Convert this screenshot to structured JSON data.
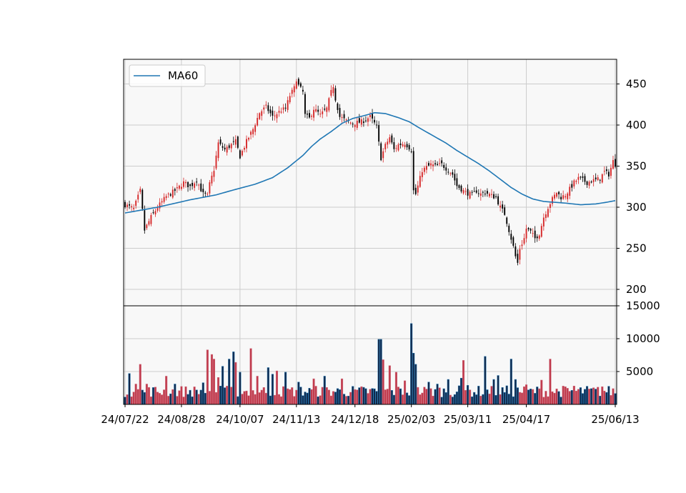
{
  "chart_data": [
    {
      "type": "candlestick",
      "panel": "price",
      "ylim": [
        180,
        480
      ],
      "yticks": [
        200,
        250,
        300,
        350,
        400,
        450
      ],
      "grid": true,
      "legend": {
        "placement": "top-left",
        "entries": [
          "MA60"
        ]
      },
      "up_color": "#d62728",
      "down_color": "#000000",
      "ma_color": "#1f77b4",
      "n_bars": 227,
      "close_keypoints": [
        [
          0,
          303
        ],
        [
          4,
          298
        ],
        [
          7,
          320
        ],
        [
          9,
          272
        ],
        [
          12,
          288
        ],
        [
          15,
          300
        ],
        [
          19,
          313
        ],
        [
          24,
          322
        ],
        [
          27,
          330
        ],
        [
          30,
          325
        ],
        [
          33,
          333
        ],
        [
          36,
          316
        ],
        [
          38,
          314
        ],
        [
          39,
          328
        ],
        [
          41,
          346
        ],
        [
          43,
          378
        ],
        [
          46,
          370
        ],
        [
          49,
          376
        ],
        [
          51,
          380
        ],
        [
          53,
          362
        ],
        [
          56,
          380
        ],
        [
          59,
          395
        ],
        [
          62,
          415
        ],
        [
          65,
          422
        ],
        [
          68,
          410
        ],
        [
          72,
          418
        ],
        [
          74,
          420
        ],
        [
          76,
          436
        ],
        [
          78,
          445
        ],
        [
          79,
          456
        ],
        [
          80,
          448
        ],
        [
          82,
          440
        ],
        [
          83,
          412
        ],
        [
          85,
          408
        ],
        [
          87,
          420
        ],
        [
          89,
          415
        ],
        [
          90,
          412
        ],
        [
          93,
          420
        ],
        [
          95,
          440
        ],
        [
          96,
          448
        ],
        [
          97,
          432
        ],
        [
          99,
          410
        ],
        [
          102,
          405
        ],
        [
          105,
          402
        ],
        [
          109,
          404
        ],
        [
          113,
          410
        ],
        [
          116,
          398
        ],
        [
          117,
          378
        ],
        [
          118,
          360
        ],
        [
          120,
          375
        ],
        [
          122,
          385
        ],
        [
          124,
          370
        ],
        [
          126,
          376
        ],
        [
          129,
          378
        ],
        [
          132,
          370
        ],
        [
          133,
          320
        ],
        [
          134,
          316
        ],
        [
          137,
          345
        ],
        [
          141,
          352
        ],
        [
          143,
          350
        ],
        [
          146,
          352
        ],
        [
          149,
          345
        ],
        [
          151,
          340
        ],
        [
          153,
          326
        ],
        [
          155,
          322
        ],
        [
          157,
          318
        ],
        [
          160,
          315
        ],
        [
          162,
          320
        ],
        [
          164,
          316
        ],
        [
          166,
          318
        ],
        [
          169,
          314
        ],
        [
          171,
          312
        ],
        [
          173,
          300
        ],
        [
          175,
          292
        ],
        [
          176,
          282
        ],
        [
          178,
          262
        ],
        [
          179,
          252
        ],
        [
          180,
          240
        ],
        [
          181,
          232
        ],
        [
          182,
          250
        ],
        [
          184,
          262
        ],
        [
          185,
          274
        ],
        [
          187,
          270
        ],
        [
          189,
          262
        ],
        [
          191,
          268
        ],
        [
          193,
          288
        ],
        [
          195,
          300
        ],
        [
          197,
          310
        ],
        [
          199,
          318
        ],
        [
          201,
          312
        ],
        [
          203,
          315
        ],
        [
          205,
          322
        ],
        [
          207,
          330
        ],
        [
          209,
          335
        ],
        [
          211,
          333
        ],
        [
          213,
          330
        ],
        [
          215,
          332
        ],
        [
          217,
          333
        ],
        [
          219,
          335
        ],
        [
          221,
          343
        ],
        [
          223,
          340
        ],
        [
          224,
          348
        ],
        [
          225,
          356
        ],
        [
          226,
          352
        ]
      ],
      "ma60_keypoints": [
        [
          0,
          293
        ],
        [
          15,
          300
        ],
        [
          30,
          309
        ],
        [
          42,
          315
        ],
        [
          50,
          321
        ],
        [
          60,
          328
        ],
        [
          68,
          336
        ],
        [
          75,
          348
        ],
        [
          82,
          363
        ],
        [
          86,
          374
        ],
        [
          90,
          383
        ],
        [
          95,
          392
        ],
        [
          100,
          402
        ],
        [
          105,
          408
        ],
        [
          111,
          412
        ],
        [
          115,
          415
        ],
        [
          120,
          414
        ],
        [
          126,
          409
        ],
        [
          131,
          404
        ],
        [
          136,
          396
        ],
        [
          142,
          387
        ],
        [
          148,
          378
        ],
        [
          153,
          369
        ],
        [
          158,
          361
        ],
        [
          163,
          353
        ],
        [
          168,
          344
        ],
        [
          173,
          334
        ],
        [
          178,
          324
        ],
        [
          183,
          316
        ],
        [
          188,
          310
        ],
        [
          193,
          307
        ],
        [
          203,
          305
        ],
        [
          210,
          303
        ],
        [
          217,
          304
        ],
        [
          222,
          306
        ],
        [
          226,
          308
        ]
      ]
    },
    {
      "type": "bar",
      "panel": "volume",
      "ylim": [
        0,
        15000
      ],
      "yticks": [
        5000,
        10000,
        15000
      ],
      "grid": true,
      "base_level": 2200,
      "spikes": [
        [
          2,
          4700
        ],
        [
          5,
          3100
        ],
        [
          7,
          6100
        ],
        [
          10,
          3100
        ],
        [
          19,
          4300
        ],
        [
          23,
          3100
        ],
        [
          36,
          3300
        ],
        [
          38,
          8300
        ],
        [
          40,
          7600
        ],
        [
          41,
          6900
        ],
        [
          43,
          4100
        ],
        [
          45,
          5800
        ],
        [
          48,
          6900
        ],
        [
          50,
          8000
        ],
        [
          51,
          6400
        ],
        [
          53,
          4900
        ],
        [
          58,
          8500
        ],
        [
          61,
          4300
        ],
        [
          66,
          5600
        ],
        [
          68,
          4600
        ],
        [
          70,
          5100
        ],
        [
          74,
          4900
        ],
        [
          80,
          3400
        ],
        [
          87,
          3900
        ],
        [
          92,
          4300
        ],
        [
          100,
          3900
        ],
        [
          107,
          2200
        ],
        [
          117,
          9900
        ],
        [
          118,
          9900
        ],
        [
          119,
          6800
        ],
        [
          122,
          5900
        ],
        [
          125,
          4900
        ],
        [
          129,
          3600
        ],
        [
          132,
          12300
        ],
        [
          133,
          7800
        ],
        [
          134,
          6100
        ],
        [
          140,
          3400
        ],
        [
          144,
          3100
        ],
        [
          149,
          3800
        ],
        [
          155,
          4000
        ],
        [
          156,
          6700
        ],
        [
          158,
          2900
        ],
        [
          166,
          7300
        ],
        [
          170,
          3800
        ],
        [
          172,
          4400
        ],
        [
          178,
          6900
        ],
        [
          180,
          3800
        ],
        [
          185,
          3000
        ],
        [
          192,
          3700
        ],
        [
          196,
          6900
        ],
        [
          207,
          2800
        ],
        [
          220,
          2700
        ]
      ]
    }
  ],
  "x_axis": {
    "tick_labels": [
      "24/07/22",
      "24/08/28",
      "24/10/07",
      "24/11/13",
      "24/12/18",
      "25/02/03",
      "25/03/11",
      "25/04/17",
      "25/06/13"
    ],
    "tick_index": [
      0,
      26,
      53,
      79,
      106,
      132,
      158,
      185,
      226
    ]
  }
}
